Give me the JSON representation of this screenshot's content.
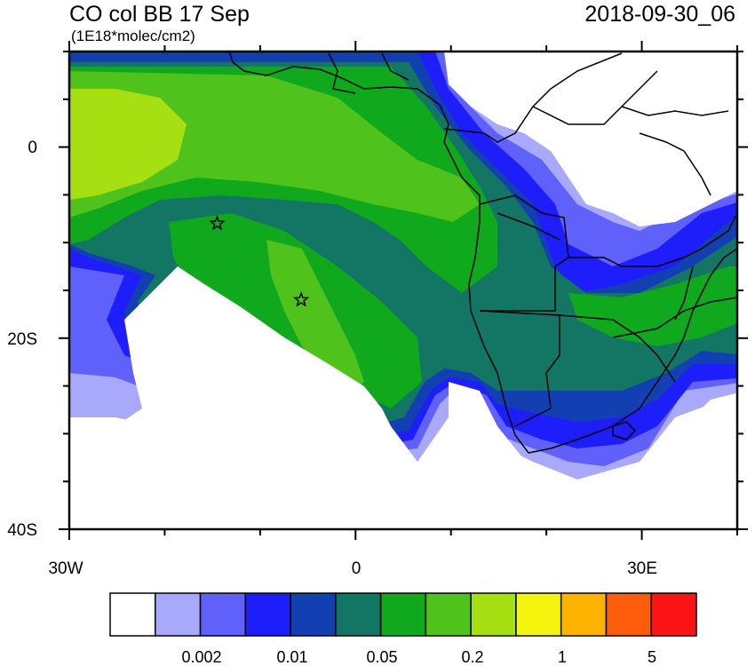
{
  "title": "CO col BB 17 Sep",
  "timestamp": "2018-09-30_06",
  "units": "(1E18*molec/cm2)",
  "map": {
    "region": "Southeast Atlantic / Southern Africa",
    "lon_range": [
      -30,
      40
    ],
    "lat_range": [
      -40,
      10
    ],
    "x_tick_labels": [
      "30W",
      "0",
      "30E"
    ],
    "y_tick_labels": [
      "0",
      "20S",
      "40S"
    ],
    "markers": [
      {
        "type": "star",
        "lon": -14.5,
        "lat": -8
      },
      {
        "type": "star",
        "lon": -5.7,
        "lat": -16
      }
    ]
  },
  "colorbar": {
    "colors": [
      "#ffffff",
      "#a9a9fb",
      "#6060fb",
      "#1e1efb",
      "#1240b2",
      "#137564",
      "#10a81c",
      "#4fc21b",
      "#a6e012",
      "#f4f40f",
      "#fdb100",
      "#fd5c0a",
      "#fa1414"
    ],
    "labels": [
      "0.002",
      "0.01",
      "0.05",
      "0.2",
      "1",
      "5"
    ]
  }
}
